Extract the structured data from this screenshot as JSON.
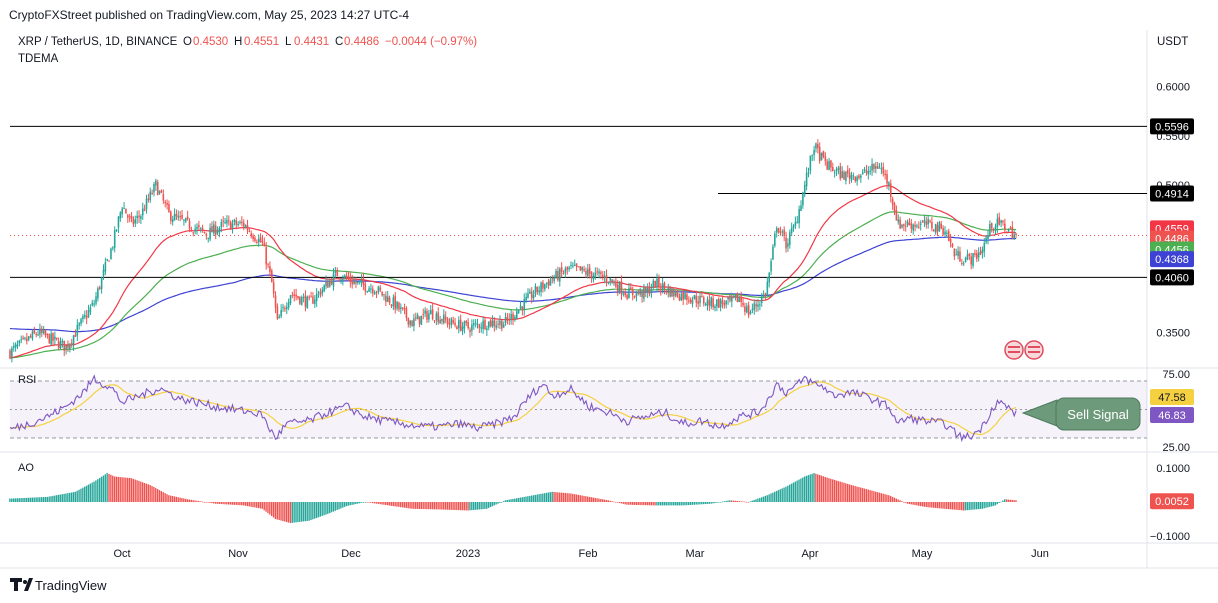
{
  "header": {
    "published": "CryptoFXStreet published on TradingView.com, May 25, 2023 14:27 UTC-4",
    "symbol": "XRP / TetherUS, 1D, BINANCE",
    "o_label": "O",
    "o_value": "0.4530",
    "h_label": "H",
    "h_value": "0.4551",
    "l_label": "L",
    "l_value": "0.4431",
    "c_label": "C",
    "c_value": "0.4486",
    "change": "−0.0044 (−0.97%)",
    "indicator": "TDEMA",
    "currency": "USDT"
  },
  "footer": {
    "brand": "TradingView"
  },
  "colors": {
    "up": "#26a69a",
    "down": "#ef5350",
    "ema_fast": "#f23645",
    "ema_mid": "#4caf50",
    "ema_slow": "#3d42d4",
    "rsi": "#7e57c2",
    "rsi_ma": "#f5d142",
    "ao_up": "#26a69a",
    "ao_down": "#ef5350"
  },
  "chart_data": [
    {
      "type": "candlestick",
      "title": "XRP / TetherUS, 1D, BINANCE",
      "ylim": [
        0.322,
        0.617
      ],
      "y_ticks": [
        "0.6000",
        "0.5500",
        "0.5000",
        "0.3500"
      ],
      "x_ticks": [
        "Oct",
        "Nov",
        "Dec",
        "2023",
        "Feb",
        "Mar",
        "Apr",
        "May",
        "Jun"
      ],
      "horizontal_levels": [
        {
          "value": 0.5596,
          "label": "0.5596"
        },
        {
          "value": 0.4914,
          "label": "0.4914"
        },
        {
          "value": 0.406,
          "label": "0.4060"
        }
      ],
      "price_labels": [
        {
          "value": 0.4559,
          "label": "0.4559",
          "color": "#f23645"
        },
        {
          "value": 0.4486,
          "label": "0.4486",
          "color": "#ef5350"
        },
        {
          "value": 0.4456,
          "label": "0.4456",
          "color": "#4caf50"
        },
        {
          "value": 0.4368,
          "label": "0.4368",
          "color": "#3d42d4"
        }
      ],
      "current_price": 0.4486,
      "close_path": [
        [
          0,
          0.33
        ],
        [
          15,
          0.35
        ],
        [
          30,
          0.335
        ],
        [
          45,
          0.38
        ],
        [
          55,
          0.44
        ],
        [
          60,
          0.48
        ],
        [
          65,
          0.46
        ],
        [
          70,
          0.47
        ],
        [
          78,
          0.5
        ],
        [
          85,
          0.47
        ],
        [
          95,
          0.46
        ],
        [
          105,
          0.45
        ],
        [
          115,
          0.46
        ],
        [
          125,
          0.46
        ],
        [
          135,
          0.44
        ],
        [
          140,
          0.4
        ],
        [
          143,
          0.36
        ],
        [
          150,
          0.39
        ],
        [
          160,
          0.38
        ],
        [
          170,
          0.4
        ],
        [
          175,
          0.41
        ],
        [
          185,
          0.4
        ],
        [
          195,
          0.395
        ],
        [
          205,
          0.38
        ],
        [
          215,
          0.36
        ],
        [
          225,
          0.37
        ],
        [
          235,
          0.36
        ],
        [
          245,
          0.355
        ],
        [
          255,
          0.36
        ],
        [
          265,
          0.36
        ],
        [
          270,
          0.37
        ],
        [
          280,
          0.39
        ],
        [
          290,
          0.405
        ],
        [
          300,
          0.415
        ],
        [
          310,
          0.41
        ],
        [
          320,
          0.405
        ],
        [
          330,
          0.39
        ],
        [
          340,
          0.39
        ],
        [
          345,
          0.4
        ],
        [
          355,
          0.39
        ],
        [
          365,
          0.385
        ],
        [
          375,
          0.38
        ],
        [
          385,
          0.38
        ],
        [
          390,
          0.385
        ],
        [
          395,
          0.37
        ],
        [
          400,
          0.38
        ],
        [
          404,
          0.39
        ],
        [
          407,
          0.42
        ],
        [
          410,
          0.46
        ],
        [
          415,
          0.44
        ],
        [
          420,
          0.46
        ],
        [
          425,
          0.5
        ],
        [
          430,
          0.54
        ],
        [
          433,
          0.53
        ],
        [
          437,
          0.52
        ],
        [
          445,
          0.51
        ],
        [
          455,
          0.51
        ],
        [
          465,
          0.52
        ],
        [
          470,
          0.5
        ],
        [
          475,
          0.46
        ],
        [
          480,
          0.46
        ],
        [
          490,
          0.46
        ],
        [
          500,
          0.455
        ],
        [
          505,
          0.43
        ],
        [
          510,
          0.425
        ],
        [
          515,
          0.425
        ],
        [
          520,
          0.435
        ],
        [
          525,
          0.46
        ],
        [
          530,
          0.46
        ],
        [
          538,
          0.4486
        ]
      ]
    },
    {
      "type": "line",
      "title": "RSI",
      "ylim": [
        25,
        75
      ],
      "y_ticks": [
        "75.00",
        "25.00"
      ],
      "bands": [
        30,
        50,
        70
      ],
      "series": [
        {
          "name": "RSI",
          "last": 46.83,
          "label": "46.83",
          "color": "#7e57c2"
        },
        {
          "name": "RSI MA",
          "last": 47.58,
          "label": "47.58",
          "color": "#f5d142"
        }
      ],
      "rsi_path": [
        [
          0,
          36
        ],
        [
          10,
          40
        ],
        [
          20,
          45
        ],
        [
          30,
          52
        ],
        [
          40,
          63
        ],
        [
          45,
          72
        ],
        [
          50,
          68
        ],
        [
          55,
          64
        ],
        [
          60,
          55
        ],
        [
          70,
          60
        ],
        [
          80,
          65
        ],
        [
          90,
          58
        ],
        [
          100,
          55
        ],
        [
          110,
          52
        ],
        [
          120,
          50
        ],
        [
          130,
          48
        ],
        [
          135,
          46
        ],
        [
          138,
          38
        ],
        [
          142,
          30
        ],
        [
          148,
          40
        ],
        [
          160,
          42
        ],
        [
          170,
          48
        ],
        [
          180,
          52
        ],
        [
          190,
          45
        ],
        [
          200,
          42
        ],
        [
          210,
          40
        ],
        [
          220,
          38
        ],
        [
          230,
          38
        ],
        [
          240,
          40
        ],
        [
          250,
          37
        ],
        [
          260,
          40
        ],
        [
          270,
          45
        ],
        [
          275,
          55
        ],
        [
          280,
          62
        ],
        [
          285,
          68
        ],
        [
          290,
          60
        ],
        [
          300,
          64
        ],
        [
          310,
          52
        ],
        [
          320,
          48
        ],
        [
          330,
          42
        ],
        [
          340,
          45
        ],
        [
          350,
          48
        ],
        [
          360,
          40
        ],
        [
          370,
          42
        ],
        [
          380,
          38
        ],
        [
          390,
          45
        ],
        [
          400,
          48
        ],
        [
          405,
          56
        ],
        [
          410,
          68
        ],
        [
          415,
          62
        ],
        [
          420,
          66
        ],
        [
          425,
          72
        ],
        [
          430,
          68
        ],
        [
          435,
          66
        ],
        [
          440,
          60
        ],
        [
          450,
          62
        ],
        [
          460,
          58
        ],
        [
          470,
          52
        ],
        [
          475,
          40
        ],
        [
          480,
          44
        ],
        [
          490,
          42
        ],
        [
          500,
          40
        ],
        [
          505,
          34
        ],
        [
          510,
          30
        ],
        [
          515,
          32
        ],
        [
          520,
          38
        ],
        [
          525,
          50
        ],
        [
          528,
          56
        ],
        [
          533,
          52
        ],
        [
          538,
          46.83
        ]
      ],
      "annotation": "Sell Signal"
    },
    {
      "type": "histogram",
      "title": "AO",
      "ylim": [
        -0.1,
        0.1
      ],
      "y_ticks": [
        "0.1000",
        "−0.1000"
      ],
      "last_value": 0.0052,
      "last_label": "0.0052",
      "ao_path": [
        [
          0,
          0.01
        ],
        [
          20,
          0.015
        ],
        [
          35,
          0.03
        ],
        [
          45,
          0.06
        ],
        [
          52,
          0.085
        ],
        [
          56,
          0.075
        ],
        [
          65,
          0.07
        ],
        [
          75,
          0.05
        ],
        [
          85,
          0.02
        ],
        [
          95,
          0.008
        ],
        [
          110,
          -0.005
        ],
        [
          125,
          -0.01
        ],
        [
          135,
          -0.02
        ],
        [
          142,
          -0.05
        ],
        [
          150,
          -0.062
        ],
        [
          160,
          -0.055
        ],
        [
          170,
          -0.035
        ],
        [
          180,
          -0.012
        ],
        [
          190,
          0.0
        ],
        [
          200,
          -0.008
        ],
        [
          215,
          -0.02
        ],
        [
          230,
          -0.022
        ],
        [
          245,
          -0.025
        ],
        [
          255,
          -0.02
        ],
        [
          265,
          0.005
        ],
        [
          280,
          0.02
        ],
        [
          290,
          0.03
        ],
        [
          300,
          0.025
        ],
        [
          310,
          0.015
        ],
        [
          320,
          0.005
        ],
        [
          330,
          -0.008
        ],
        [
          345,
          -0.01
        ],
        [
          360,
          -0.01
        ],
        [
          375,
          -0.005
        ],
        [
          385,
          0.005
        ],
        [
          395,
          0.0
        ],
        [
          405,
          0.02
        ],
        [
          415,
          0.045
        ],
        [
          425,
          0.075
        ],
        [
          430,
          0.085
        ],
        [
          438,
          0.07
        ],
        [
          450,
          0.05
        ],
        [
          460,
          0.035
        ],
        [
          470,
          0.02
        ],
        [
          480,
          -0.005
        ],
        [
          490,
          -0.015
        ],
        [
          500,
          -0.02
        ],
        [
          510,
          -0.025
        ],
        [
          520,
          -0.02
        ],
        [
          527,
          -0.01
        ],
        [
          532,
          0.008
        ],
        [
          538,
          0.0052
        ]
      ]
    }
  ]
}
